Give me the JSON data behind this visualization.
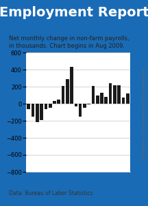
{
  "title": "Employment Report",
  "subtitle": "Net monthly change in non-farm payrolls,\nin thousands. Chart begins in Aug 2009.",
  "footer": "Data: Bureau of Labor Statistics",
  "watermark": "©ChartForce  Do not reproduce without permission.",
  "values": [
    -65,
    -155,
    -215,
    -190,
    -65,
    -45,
    30,
    50,
    210,
    290,
    430,
    -35,
    -155,
    -45,
    -10,
    210,
    100,
    125,
    80,
    240,
    220,
    220,
    70,
    120
  ],
  "bar_color": "#1a1a1a",
  "bg_color": "#ffffff",
  "title_bg": "#1a6bb5",
  "title_fg": "#ffffff",
  "ylim": [
    -800,
    600
  ],
  "yticks": [
    -800,
    -600,
    -400,
    -200,
    0,
    200,
    400,
    600
  ],
  "grid_color": "#cccccc",
  "border_color": "#1a6bb5",
  "subtitle_color": "#222222",
  "footer_color": "#333333",
  "watermark_color": "#666666"
}
